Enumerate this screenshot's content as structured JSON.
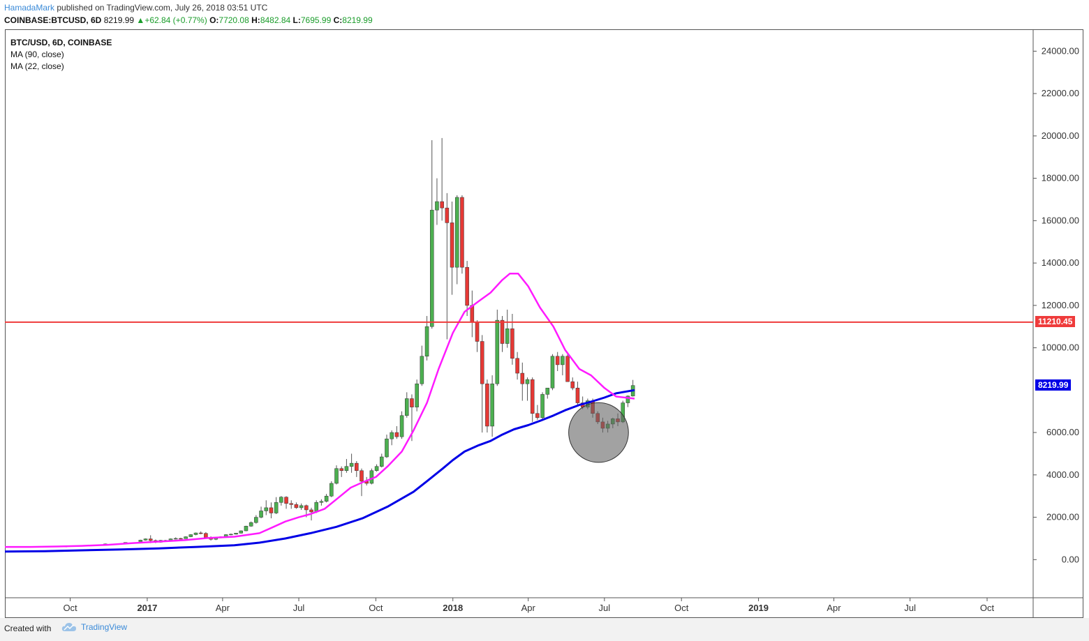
{
  "header": {
    "author": "HamadaMark",
    "published_text": "published on TradingView.com, July 26, 2018 03:51 UTC",
    "symbol": "COINBASE:BTCUSD, 6D",
    "last": "8219.99",
    "change": "+62.84 (+0.77%)",
    "o_label": "O:",
    "o_value": "7720.08",
    "h_label": "H:",
    "h_value": "8482.84",
    "l_label": "L:",
    "l_value": "7695.99",
    "c_label": "C:",
    "c_value": "8219.99"
  },
  "legend": {
    "title": "BTC/USD, 6D, COINBASE",
    "ma90": "MA (90, close)",
    "ma22": "MA (22, close)"
  },
  "footer": {
    "created_with": "Created with",
    "brand": "TradingView"
  },
  "colors": {
    "up": "#4caf50",
    "down": "#e53935",
    "ma22": "#ff1aff",
    "ma90": "#0000e6",
    "hline": "#ef3b3b",
    "last_tag": "#0000e6"
  },
  "chart_data": {
    "type": "candlestick",
    "title": "BTC/USD, 6D, COINBASE",
    "ylim": [
      -1800,
      25000
    ],
    "yticks": [
      "24000.00",
      "22000.00",
      "20000.00",
      "18000.00",
      "16000.00",
      "14000.00",
      "12000.00",
      "10000.00",
      "6000.00",
      "4000.00",
      "2000.00",
      "0.00"
    ],
    "ytick_values": [
      24000,
      22000,
      20000,
      18000,
      16000,
      14000,
      12000,
      10000,
      6000,
      4000,
      2000,
      0
    ],
    "xticks": [
      {
        "label": "Oct",
        "date": "2016-10-01",
        "bold": false
      },
      {
        "label": "2017",
        "date": "2017-01-01",
        "bold": true
      },
      {
        "label": "Apr",
        "date": "2017-04-01",
        "bold": false
      },
      {
        "label": "Jul",
        "date": "2017-07-01",
        "bold": false
      },
      {
        "label": "Oct",
        "date": "2017-10-01",
        "bold": false
      },
      {
        "label": "2018",
        "date": "2018-01-01",
        "bold": true
      },
      {
        "label": "Apr",
        "date": "2018-04-01",
        "bold": false
      },
      {
        "label": "Jul",
        "date": "2018-07-01",
        "bold": false
      },
      {
        "label": "Oct",
        "date": "2018-10-01",
        "bold": false
      },
      {
        "label": "2019",
        "date": "2019-01-01",
        "bold": true
      },
      {
        "label": "Apr",
        "date": "2019-04-01",
        "bold": false
      },
      {
        "label": "Jul",
        "date": "2019-07-01",
        "bold": false
      },
      {
        "label": "Oct",
        "date": "2019-10-01",
        "bold": false
      }
    ],
    "x_start_date": "2016-07-15",
    "x_end_date": "2019-11-25",
    "hline": {
      "value": 11210.45,
      "label": "11210.45"
    },
    "last_price": {
      "value": 8219.99,
      "label": "8219.99"
    },
    "highlight_circle": {
      "date": "2018-06-24",
      "value": 6000,
      "radius_days": 17
    },
    "candles": [
      {
        "d": "2016-09-25",
        "o": 600,
        "h": 640,
        "l": 590,
        "c": 630
      },
      {
        "d": "2016-10-19",
        "o": 630,
        "h": 680,
        "l": 620,
        "c": 670
      },
      {
        "d": "2016-11-12",
        "o": 700,
        "h": 760,
        "l": 690,
        "c": 740
      },
      {
        "d": "2016-12-06",
        "o": 760,
        "h": 820,
        "l": 750,
        "c": 810
      },
      {
        "d": "2016-12-24",
        "o": 850,
        "h": 940,
        "l": 840,
        "c": 920
      },
      {
        "d": "2016-12-30",
        "o": 920,
        "h": 1000,
        "l": 900,
        "c": 980
      },
      {
        "d": "2017-01-05",
        "o": 980,
        "h": 1150,
        "l": 780,
        "c": 900
      },
      {
        "d": "2017-01-11",
        "o": 900,
        "h": 950,
        "l": 780,
        "c": 820
      },
      {
        "d": "2017-01-17",
        "o": 820,
        "h": 930,
        "l": 800,
        "c": 910
      },
      {
        "d": "2017-01-23",
        "o": 910,
        "h": 930,
        "l": 880,
        "c": 900
      },
      {
        "d": "2017-01-29",
        "o": 900,
        "h": 1000,
        "l": 890,
        "c": 980
      },
      {
        "d": "2017-02-04",
        "o": 980,
        "h": 1050,
        "l": 950,
        "c": 1000
      },
      {
        "d": "2017-02-10",
        "o": 1000,
        "h": 1030,
        "l": 960,
        "c": 990
      },
      {
        "d": "2017-02-16",
        "o": 990,
        "h": 1100,
        "l": 980,
        "c": 1080
      },
      {
        "d": "2017-02-22",
        "o": 1080,
        "h": 1200,
        "l": 1060,
        "c": 1180
      },
      {
        "d": "2017-02-28",
        "o": 1180,
        "h": 1280,
        "l": 1150,
        "c": 1260
      },
      {
        "d": "2017-03-06",
        "o": 1260,
        "h": 1330,
        "l": 1200,
        "c": 1240
      },
      {
        "d": "2017-03-12",
        "o": 1240,
        "h": 1300,
        "l": 1000,
        "c": 1050
      },
      {
        "d": "2017-03-18",
        "o": 1050,
        "h": 1100,
        "l": 900,
        "c": 960
      },
      {
        "d": "2017-03-24",
        "o": 960,
        "h": 1070,
        "l": 920,
        "c": 1040
      },
      {
        "d": "2017-03-30",
        "o": 1040,
        "h": 1100,
        "l": 1010,
        "c": 1080
      },
      {
        "d": "2017-04-05",
        "o": 1080,
        "h": 1200,
        "l": 1060,
        "c": 1180
      },
      {
        "d": "2017-04-11",
        "o": 1180,
        "h": 1230,
        "l": 1150,
        "c": 1200
      },
      {
        "d": "2017-04-17",
        "o": 1200,
        "h": 1260,
        "l": 1180,
        "c": 1250
      },
      {
        "d": "2017-04-23",
        "o": 1250,
        "h": 1380,
        "l": 1230,
        "c": 1360
      },
      {
        "d": "2017-04-29",
        "o": 1360,
        "h": 1600,
        "l": 1340,
        "c": 1580
      },
      {
        "d": "2017-05-05",
        "o": 1580,
        "h": 1800,
        "l": 1550,
        "c": 1750
      },
      {
        "d": "2017-05-11",
        "o": 1750,
        "h": 2100,
        "l": 1700,
        "c": 2000
      },
      {
        "d": "2017-05-17",
        "o": 2000,
        "h": 2500,
        "l": 1950,
        "c": 2300
      },
      {
        "d": "2017-05-23",
        "o": 2300,
        "h": 2800,
        "l": 2100,
        "c": 2450
      },
      {
        "d": "2017-05-29",
        "o": 2450,
        "h": 2700,
        "l": 1950,
        "c": 2200
      },
      {
        "d": "2017-06-04",
        "o": 2200,
        "h": 2950,
        "l": 2150,
        "c": 2700
      },
      {
        "d": "2017-06-10",
        "o": 2700,
        "h": 3000,
        "l": 2550,
        "c": 2950
      },
      {
        "d": "2017-06-16",
        "o": 2950,
        "h": 2990,
        "l": 2400,
        "c": 2650
      },
      {
        "d": "2017-06-22",
        "o": 2650,
        "h": 2800,
        "l": 2400,
        "c": 2600
      },
      {
        "d": "2017-06-28",
        "o": 2600,
        "h": 2700,
        "l": 2400,
        "c": 2450
      },
      {
        "d": "2017-07-04",
        "o": 2450,
        "h": 2650,
        "l": 2350,
        "c": 2550
      },
      {
        "d": "2017-07-10",
        "o": 2550,
        "h": 2600,
        "l": 2000,
        "c": 2350
      },
      {
        "d": "2017-07-16",
        "o": 2350,
        "h": 2450,
        "l": 1850,
        "c": 2250
      },
      {
        "d": "2017-07-22",
        "o": 2250,
        "h": 2800,
        "l": 2200,
        "c": 2700
      },
      {
        "d": "2017-07-28",
        "o": 2700,
        "h": 2850,
        "l": 2550,
        "c": 2750
      },
      {
        "d": "2017-08-03",
        "o": 2750,
        "h": 3100,
        "l": 2700,
        "c": 3000
      },
      {
        "d": "2017-08-09",
        "o": 3000,
        "h": 3700,
        "l": 2950,
        "c": 3600
      },
      {
        "d": "2017-08-15",
        "o": 3600,
        "h": 4450,
        "l": 3550,
        "c": 4300
      },
      {
        "d": "2017-08-21",
        "o": 4300,
        "h": 4400,
        "l": 3900,
        "c": 4200
      },
      {
        "d": "2017-08-27",
        "o": 4200,
        "h": 4750,
        "l": 4100,
        "c": 4400
      },
      {
        "d": "2017-09-02",
        "o": 4400,
        "h": 5000,
        "l": 4100,
        "c": 4550
      },
      {
        "d": "2017-09-08",
        "o": 4550,
        "h": 4650,
        "l": 3900,
        "c": 4200
      },
      {
        "d": "2017-09-14",
        "o": 4200,
        "h": 4300,
        "l": 3000,
        "c": 3700
      },
      {
        "d": "2017-09-20",
        "o": 3700,
        "h": 3900,
        "l": 3500,
        "c": 3600
      },
      {
        "d": "2017-09-26",
        "o": 3600,
        "h": 4300,
        "l": 3550,
        "c": 4200
      },
      {
        "d": "2017-10-02",
        "o": 4200,
        "h": 4500,
        "l": 4150,
        "c": 4400
      },
      {
        "d": "2017-10-08",
        "o": 4400,
        "h": 5000,
        "l": 4350,
        "c": 4850
      },
      {
        "d": "2017-10-14",
        "o": 4850,
        "h": 5900,
        "l": 4800,
        "c": 5700
      },
      {
        "d": "2017-10-20",
        "o": 5700,
        "h": 6100,
        "l": 5400,
        "c": 6000
      },
      {
        "d": "2017-10-26",
        "o": 6000,
        "h": 6300,
        "l": 5700,
        "c": 5800
      },
      {
        "d": "2017-11-01",
        "o": 5800,
        "h": 7000,
        "l": 5700,
        "c": 6800
      },
      {
        "d": "2017-11-07",
        "o": 6800,
        "h": 7900,
        "l": 6700,
        "c": 7600
      },
      {
        "d": "2017-11-13",
        "o": 7600,
        "h": 7800,
        "l": 5600,
        "c": 7200
      },
      {
        "d": "2017-11-19",
        "o": 7200,
        "h": 8500,
        "l": 7000,
        "c": 8300
      },
      {
        "d": "2017-11-25",
        "o": 8300,
        "h": 10100,
        "l": 8200,
        "c": 9600
      },
      {
        "d": "2017-12-01",
        "o": 9600,
        "h": 11500,
        "l": 9400,
        "c": 11000
      },
      {
        "d": "2017-12-07",
        "o": 11000,
        "h": 19800,
        "l": 10900,
        "c": 16500
      },
      {
        "d": "2017-12-13",
        "o": 16500,
        "h": 18000,
        "l": 15800,
        "c": 16900
      },
      {
        "d": "2017-12-19",
        "o": 16900,
        "h": 19900,
        "l": 16000,
        "c": 16600
      },
      {
        "d": "2017-12-25",
        "o": 16600,
        "h": 17300,
        "l": 10400,
        "c": 15900
      },
      {
        "d": "2017-12-31",
        "o": 15900,
        "h": 16900,
        "l": 12500,
        "c": 13800
      },
      {
        "d": "2018-01-06",
        "o": 13800,
        "h": 17200,
        "l": 13000,
        "c": 17100
      },
      {
        "d": "2018-01-12",
        "o": 17100,
        "h": 17200,
        "l": 13500,
        "c": 13800
      },
      {
        "d": "2018-01-18",
        "o": 13800,
        "h": 14100,
        "l": 11500,
        "c": 12000
      },
      {
        "d": "2018-01-24",
        "o": 12000,
        "h": 12700,
        "l": 10500,
        "c": 11200
      },
      {
        "d": "2018-01-30",
        "o": 11200,
        "h": 11300,
        "l": 9800,
        "c": 10300
      },
      {
        "d": "2018-02-05",
        "o": 10300,
        "h": 10600,
        "l": 6000,
        "c": 8300
      },
      {
        "d": "2018-02-11",
        "o": 8300,
        "h": 8500,
        "l": 6000,
        "c": 6300
      },
      {
        "d": "2018-02-17",
        "o": 6300,
        "h": 8700,
        "l": 5800,
        "c": 8300
      },
      {
        "d": "2018-02-23",
        "o": 8300,
        "h": 11800,
        "l": 8200,
        "c": 11300
      },
      {
        "d": "2018-03-01",
        "o": 11300,
        "h": 11500,
        "l": 9800,
        "c": 10200
      },
      {
        "d": "2018-03-07",
        "o": 10200,
        "h": 11800,
        "l": 10000,
        "c": 10900
      },
      {
        "d": "2018-03-13",
        "o": 10900,
        "h": 11600,
        "l": 9200,
        "c": 9500
      },
      {
        "d": "2018-03-19",
        "o": 9500,
        "h": 9800,
        "l": 8500,
        "c": 8800
      },
      {
        "d": "2018-03-25",
        "o": 8800,
        "h": 9300,
        "l": 7500,
        "c": 8300
      },
      {
        "d": "2018-03-31",
        "o": 8300,
        "h": 8600,
        "l": 7500,
        "c": 8500
      },
      {
        "d": "2018-04-06",
        "o": 8500,
        "h": 8600,
        "l": 6500,
        "c": 6900
      },
      {
        "d": "2018-04-12",
        "o": 6900,
        "h": 7300,
        "l": 6600,
        "c": 6700
      },
      {
        "d": "2018-04-18",
        "o": 6700,
        "h": 7900,
        "l": 6600,
        "c": 7800
      },
      {
        "d": "2018-04-24",
        "o": 7800,
        "h": 8100,
        "l": 7600,
        "c": 8100
      },
      {
        "d": "2018-04-30",
        "o": 8100,
        "h": 9700,
        "l": 8000,
        "c": 9600
      },
      {
        "d": "2018-05-06",
        "o": 9600,
        "h": 9800,
        "l": 8900,
        "c": 9200
      },
      {
        "d": "2018-05-12",
        "o": 9200,
        "h": 9700,
        "l": 8700,
        "c": 9600
      },
      {
        "d": "2018-05-18",
        "o": 9600,
        "h": 9700,
        "l": 8400,
        "c": 8400
      },
      {
        "d": "2018-05-24",
        "o": 8400,
        "h": 8600,
        "l": 8000,
        "c": 8100
      },
      {
        "d": "2018-05-30",
        "o": 8100,
        "h": 8400,
        "l": 7300,
        "c": 7400
      },
      {
        "d": "2018-06-05",
        "o": 7400,
        "h": 7700,
        "l": 7100,
        "c": 7200
      },
      {
        "d": "2018-06-11",
        "o": 7200,
        "h": 7600,
        "l": 7100,
        "c": 7500
      },
      {
        "d": "2018-06-17",
        "o": 7500,
        "h": 7600,
        "l": 6700,
        "c": 6900
      },
      {
        "d": "2018-06-23",
        "o": 6900,
        "h": 7000,
        "l": 6400,
        "c": 6500
      },
      {
        "d": "2018-06-29",
        "o": 6500,
        "h": 6700,
        "l": 6000,
        "c": 6200
      },
      {
        "d": "2018-07-05",
        "o": 6200,
        "h": 6550,
        "l": 6000,
        "c": 6400
      },
      {
        "d": "2018-07-11",
        "o": 6400,
        "h": 6700,
        "l": 6200,
        "c": 6650
      },
      {
        "d": "2018-07-17",
        "o": 6650,
        "h": 6900,
        "l": 6300,
        "c": 6500
      },
      {
        "d": "2018-07-23",
        "o": 6500,
        "h": 7500,
        "l": 6450,
        "c": 7400
      },
      {
        "d": "2018-07-29",
        "o": 7400,
        "h": 7750,
        "l": 7200,
        "c": 7720
      },
      {
        "d": "2018-08-04",
        "o": 7720.08,
        "h": 8482.84,
        "l": 7695.99,
        "c": 8219.99
      }
    ],
    "ma22": [
      [
        "2016-07-15",
        600
      ],
      [
        "2016-08-15",
        600
      ],
      [
        "2016-09-15",
        620
      ],
      [
        "2016-10-15",
        650
      ],
      [
        "2016-11-15",
        700
      ],
      [
        "2016-12-15",
        780
      ],
      [
        "2017-01-15",
        850
      ],
      [
        "2017-02-15",
        920
      ],
      [
        "2017-03-15",
        1020
      ],
      [
        "2017-04-15",
        1080
      ],
      [
        "2017-05-15",
        1250
      ],
      [
        "2017-06-01",
        1550
      ],
      [
        "2017-06-15",
        1800
      ],
      [
        "2017-07-01",
        2000
      ],
      [
        "2017-07-15",
        2150
      ],
      [
        "2017-08-01",
        2400
      ],
      [
        "2017-08-15",
        2850
      ],
      [
        "2017-09-01",
        3400
      ],
      [
        "2017-09-15",
        3650
      ],
      [
        "2017-10-01",
        3900
      ],
      [
        "2017-10-15",
        4400
      ],
      [
        "2017-11-01",
        5100
      ],
      [
        "2017-11-15",
        6100
      ],
      [
        "2017-12-01",
        7400
      ],
      [
        "2017-12-15",
        9000
      ],
      [
        "2018-01-01",
        10700
      ],
      [
        "2018-01-15",
        11700
      ],
      [
        "2018-02-01",
        12200
      ],
      [
        "2018-02-15",
        12600
      ],
      [
        "2018-03-01",
        13200
      ],
      [
        "2018-03-10",
        13500
      ],
      [
        "2018-03-20",
        13500
      ],
      [
        "2018-04-01",
        12900
      ],
      [
        "2018-04-15",
        11900
      ],
      [
        "2018-05-01",
        11000
      ],
      [
        "2018-05-15",
        9900
      ],
      [
        "2018-06-01",
        9000
      ],
      [
        "2018-06-15",
        8700
      ],
      [
        "2018-07-01",
        8100
      ],
      [
        "2018-07-15",
        7700
      ],
      [
        "2018-08-06",
        7600
      ]
    ],
    "ma90": [
      [
        "2016-07-15",
        380
      ],
      [
        "2016-09-01",
        400
      ],
      [
        "2016-10-15",
        440
      ],
      [
        "2016-12-01",
        480
      ],
      [
        "2017-01-15",
        530
      ],
      [
        "2017-03-01",
        600
      ],
      [
        "2017-04-15",
        680
      ],
      [
        "2017-05-15",
        800
      ],
      [
        "2017-06-15",
        1000
      ],
      [
        "2017-07-15",
        1250
      ],
      [
        "2017-08-15",
        1550
      ],
      [
        "2017-09-15",
        1950
      ],
      [
        "2017-10-15",
        2500
      ],
      [
        "2017-11-15",
        3200
      ],
      [
        "2017-12-01",
        3700
      ],
      [
        "2017-12-20",
        4300
      ],
      [
        "2018-01-01",
        4700
      ],
      [
        "2018-01-15",
        5100
      ],
      [
        "2018-02-01",
        5400
      ],
      [
        "2018-02-15",
        5600
      ],
      [
        "2018-03-01",
        5900
      ],
      [
        "2018-03-15",
        6150
      ],
      [
        "2018-04-01",
        6350
      ],
      [
        "2018-04-15",
        6550
      ],
      [
        "2018-05-01",
        6800
      ],
      [
        "2018-05-15",
        7050
      ],
      [
        "2018-06-01",
        7300
      ],
      [
        "2018-06-15",
        7450
      ],
      [
        "2018-07-01",
        7650
      ],
      [
        "2018-07-15",
        7850
      ],
      [
        "2018-08-06",
        8000
      ]
    ]
  }
}
